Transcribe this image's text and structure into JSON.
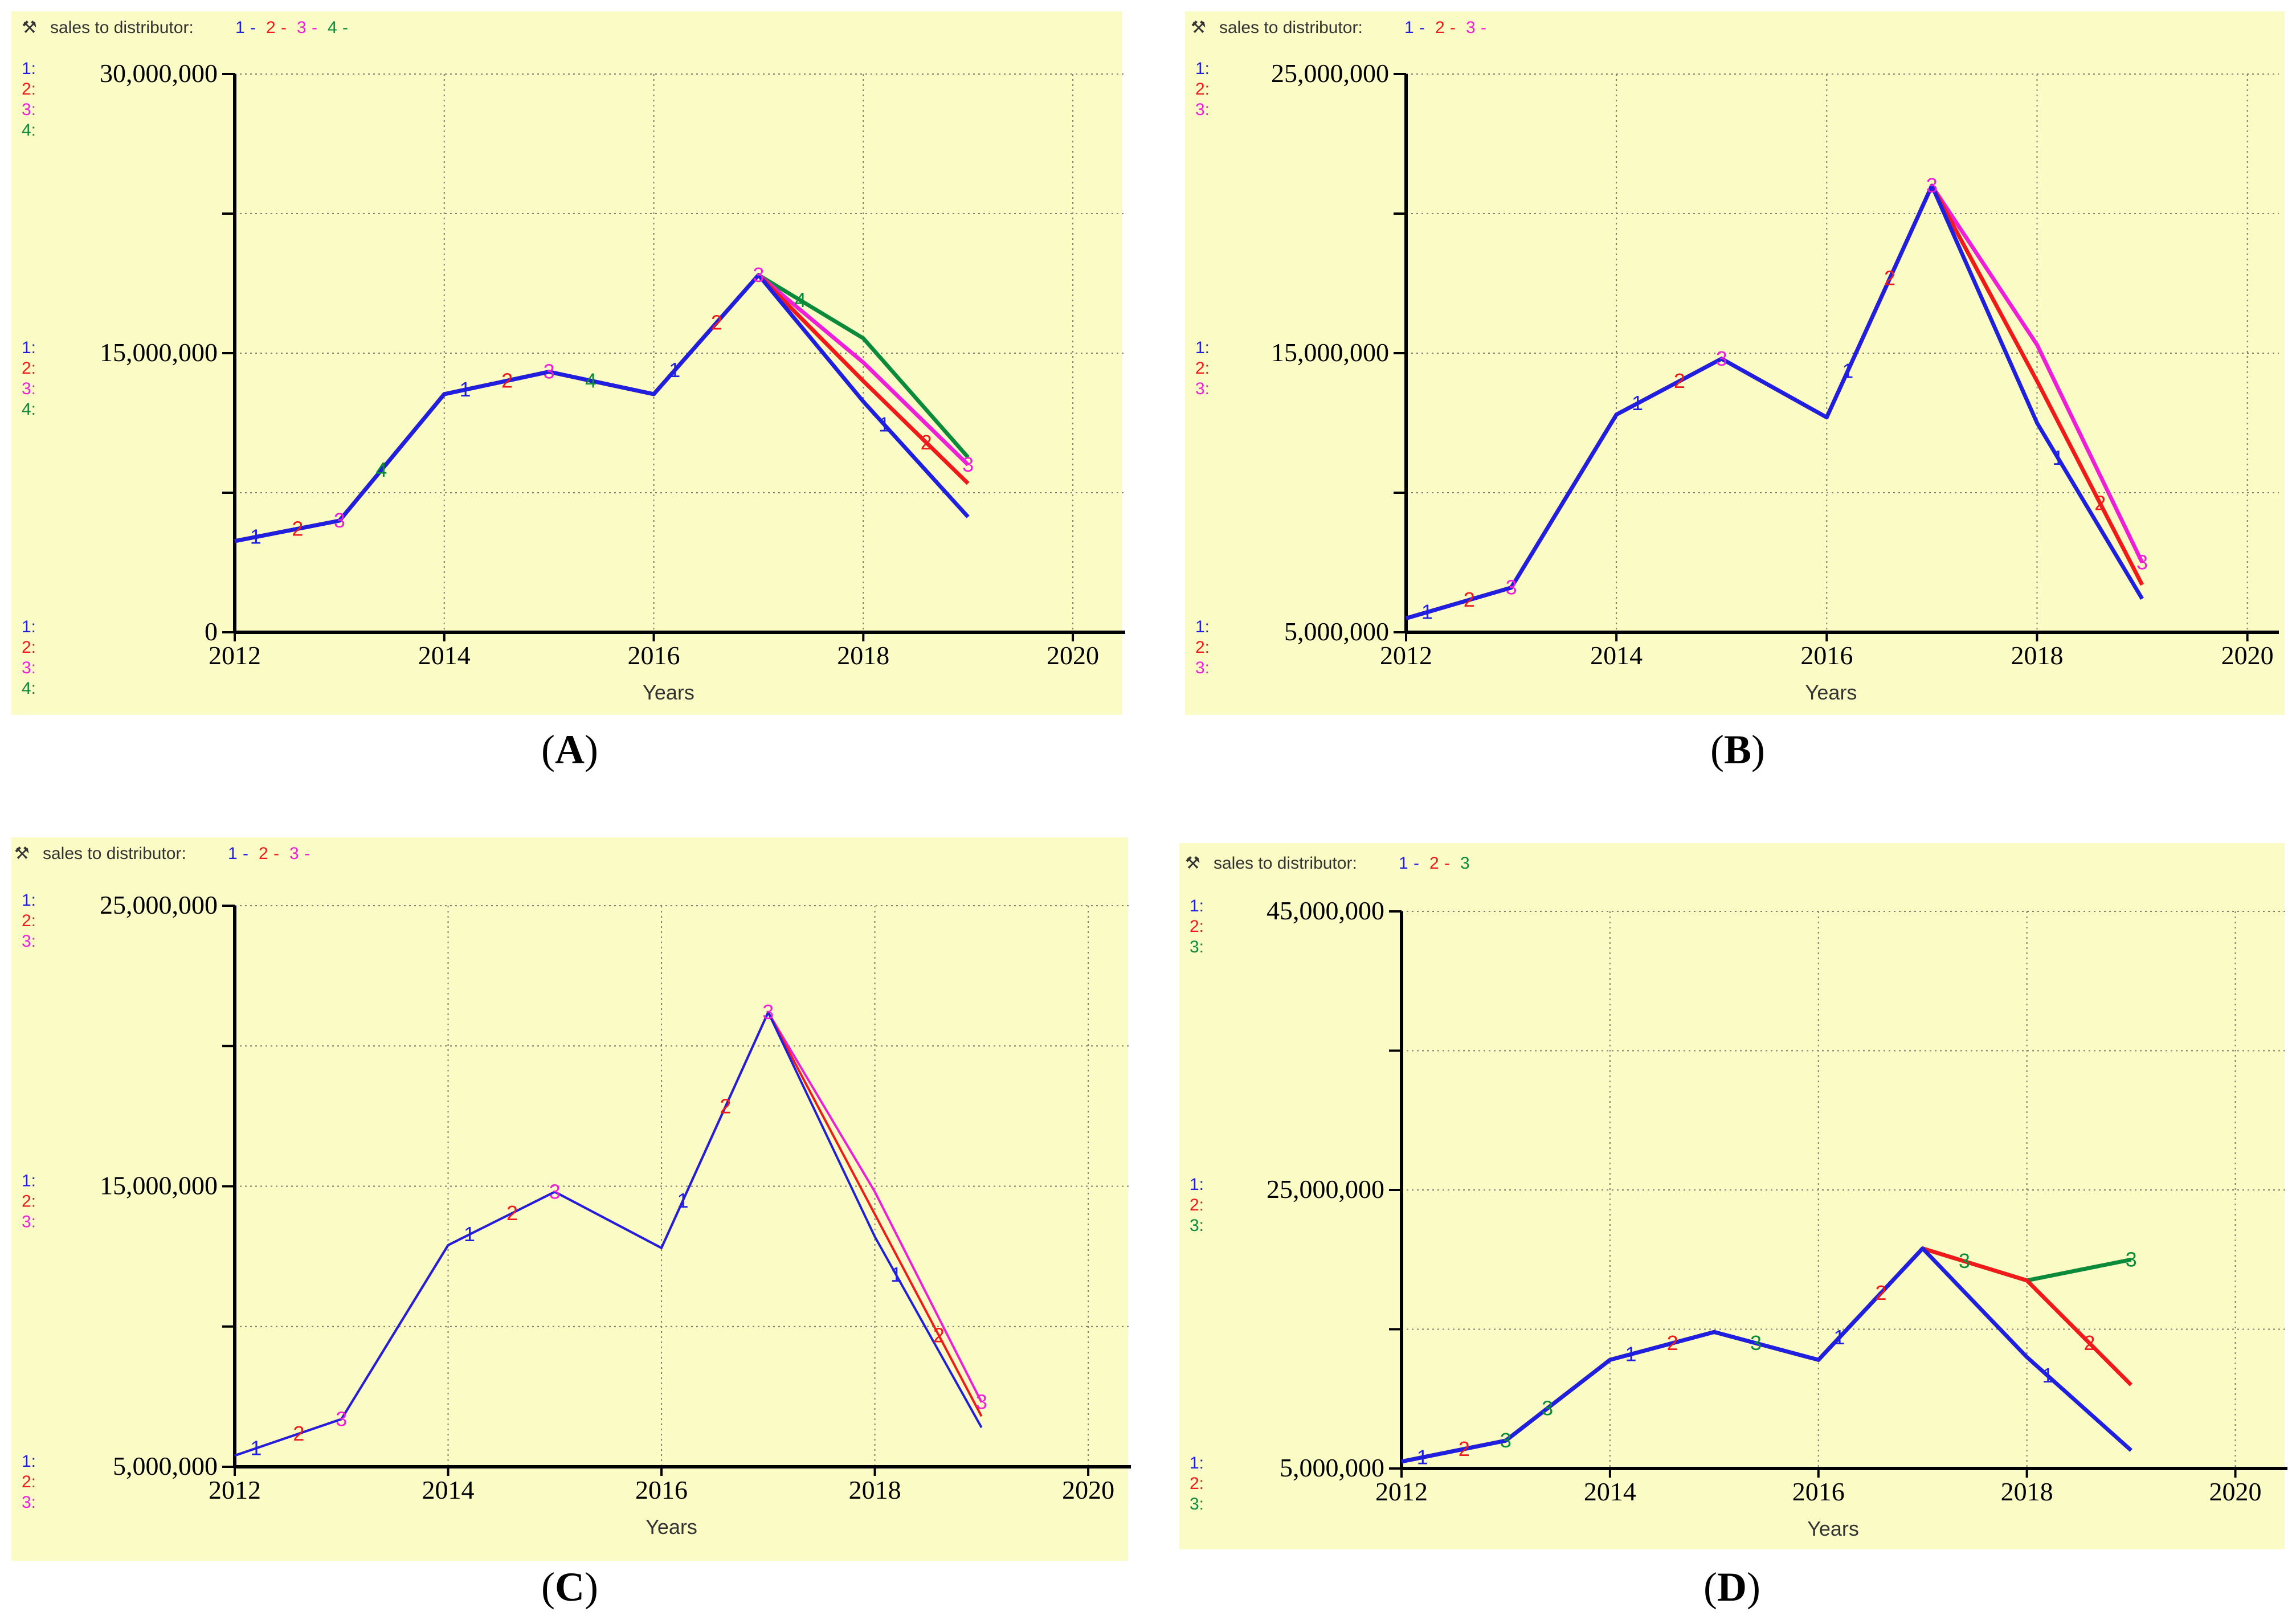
{
  "colors": {
    "panel_background": "#fbfbc5",
    "series_1": "#1f1fe0",
    "series_2": "#f01a1a",
    "series_3_magenta": "#ee1fd6",
    "series_3_green": "#0a8a3a",
    "series_4": "#0a8a3a"
  },
  "chart_data": [
    {
      "panel": "A",
      "caption": "(A)",
      "caption_letter": "A",
      "type": "line",
      "title": "sales to distributor:",
      "title_icon": "wrench-icon",
      "series_numbers": [
        "1",
        "2",
        "3",
        "4"
      ],
      "series_separator": "-",
      "xlabel": "Years",
      "xlim": [
        2012,
        2020.5
      ],
      "ylim": [
        0,
        30000000
      ],
      "x_ticks": [
        2012,
        2014,
        2016,
        2018,
        2020
      ],
      "x_tick_labels": [
        "2012",
        "2014",
        "2016",
        "2018",
        "2020"
      ],
      "y_ticks": [
        0,
        7500000,
        15000000,
        22500000,
        30000000
      ],
      "y_tick_labels": [
        "0",
        "",
        "15,000,000",
        "",
        "30,000,000"
      ],
      "grid": true,
      "series": [
        {
          "name": "1",
          "color": "#1f1fe0",
          "x": [
            2012,
            2013,
            2014,
            2015,
            2016,
            2017,
            2018,
            2019
          ],
          "values": [
            4900000,
            6000000,
            12800000,
            14000000,
            12800000,
            19200000,
            12400000,
            6200000
          ]
        },
        {
          "name": "2",
          "color": "#f01a1a",
          "x": [
            2012,
            2013,
            2014,
            2015,
            2016,
            2017,
            2018,
            2019
          ],
          "values": [
            4900000,
            6000000,
            12800000,
            14000000,
            12800000,
            19200000,
            13500000,
            8000000
          ]
        },
        {
          "name": "3",
          "color": "#ee1fd6",
          "x": [
            2012,
            2013,
            2014,
            2015,
            2016,
            2017,
            2018,
            2019
          ],
          "values": [
            4900000,
            6000000,
            12800000,
            14000000,
            12800000,
            19200000,
            14500000,
            9000000
          ]
        },
        {
          "name": "4",
          "color": "#0a8a3a",
          "x": [
            2012,
            2013,
            2014,
            2015,
            2016,
            2017,
            2018,
            2019
          ],
          "values": [
            4900000,
            6000000,
            12800000,
            14000000,
            12800000,
            19200000,
            15800000,
            9400000
          ]
        }
      ]
    },
    {
      "panel": "B",
      "caption": "(B)",
      "caption_letter": "B",
      "type": "line",
      "title": "sales to distributor:",
      "title_icon": "wrench-icon",
      "series_numbers": [
        "1",
        "2",
        "3"
      ],
      "series_separator": "-",
      "xlabel": "Years",
      "xlim": [
        2012,
        2020.3
      ],
      "ylim": [
        5000000,
        25000000
      ],
      "x_ticks": [
        2012,
        2014,
        2016,
        2018,
        2020
      ],
      "x_tick_labels": [
        "2012",
        "2014",
        "2016",
        "2018",
        "2020"
      ],
      "y_ticks": [
        5000000,
        10000000,
        15000000,
        20000000,
        25000000
      ],
      "y_tick_labels": [
        "5,000,000",
        "",
        "15,000,000",
        "",
        "25,000,000"
      ],
      "grid": true,
      "series": [
        {
          "name": "1",
          "color": "#1f1fe0",
          "x": [
            2012,
            2013,
            2014,
            2015,
            2016,
            2017,
            2018,
            2019
          ],
          "values": [
            5500000,
            6600000,
            12800000,
            14800000,
            12700000,
            21000000,
            12500000,
            6200000
          ]
        },
        {
          "name": "2",
          "color": "#f01a1a",
          "x": [
            2012,
            2013,
            2014,
            2015,
            2016,
            2017,
            2018,
            2019
          ],
          "values": [
            5500000,
            6600000,
            12800000,
            14800000,
            12700000,
            21000000,
            14000000,
            6700000
          ]
        },
        {
          "name": "3",
          "color": "#ee1fd6",
          "x": [
            2012,
            2013,
            2014,
            2015,
            2016,
            2017,
            2018,
            2019
          ],
          "values": [
            5500000,
            6600000,
            12800000,
            14800000,
            12700000,
            21000000,
            15300000,
            7500000
          ]
        }
      ]
    },
    {
      "panel": "C",
      "caption": "(C)",
      "caption_letter": "C",
      "type": "line",
      "title": "sales to distributor:",
      "title_icon": "wrench-icon",
      "series_numbers": [
        "1",
        "2",
        "3"
      ],
      "series_separator": "-",
      "xlabel": "Years",
      "xlim": [
        2012,
        2020.4
      ],
      "ylim": [
        5000000,
        25000000
      ],
      "x_ticks": [
        2012,
        2014,
        2016,
        2018,
        2020
      ],
      "x_tick_labels": [
        "2012",
        "2014",
        "2016",
        "2018",
        "2020"
      ],
      "y_ticks": [
        5000000,
        10000000,
        15000000,
        20000000,
        25000000
      ],
      "y_tick_labels": [
        "5,000,000",
        "",
        "15,000,000",
        "",
        "25,000,000"
      ],
      "grid": true,
      "series": [
        {
          "name": "1",
          "color": "#1f1fe0",
          "x": [
            2012,
            2013,
            2014,
            2015,
            2016,
            2017,
            2018,
            2019
          ],
          "values": [
            5400000,
            6700000,
            12900000,
            14800000,
            12800000,
            21200000,
            13200000,
            6400000
          ]
        },
        {
          "name": "2",
          "color": "#f01a1a",
          "x": [
            2012,
            2013,
            2014,
            2015,
            2016,
            2017,
            2018,
            2019
          ],
          "values": [
            5400000,
            6700000,
            12900000,
            14800000,
            12800000,
            21200000,
            14000000,
            6800000
          ]
        },
        {
          "name": "3",
          "color": "#ee1fd6",
          "x": [
            2012,
            2013,
            2014,
            2015,
            2016,
            2017,
            2018,
            2019
          ],
          "values": [
            5400000,
            6700000,
            12900000,
            14800000,
            12800000,
            21200000,
            14800000,
            7300000
          ]
        }
      ]
    },
    {
      "panel": "D",
      "caption": "(D)",
      "caption_letter": "D",
      "type": "line",
      "title": "sales to distributor:",
      "title_icon": "wrench-icon",
      "series_numbers": [
        "1",
        "2",
        "3"
      ],
      "series_separator": "-",
      "xlabel": "Years",
      "xlim": [
        2012,
        2020.5
      ],
      "ylim": [
        5000000,
        45000000
      ],
      "x_ticks": [
        2012,
        2014,
        2016,
        2018,
        2020
      ],
      "x_tick_labels": [
        "2012",
        "2014",
        "2016",
        "2018",
        "2020"
      ],
      "y_ticks": [
        5000000,
        15000000,
        25000000,
        35000000,
        45000000
      ],
      "y_tick_labels": [
        "5,000,000",
        "",
        "25,000,000",
        "",
        "45,000,000"
      ],
      "grid": true,
      "series": [
        {
          "name": "1",
          "color": "#1f1fe0",
          "x": [
            2012,
            2013,
            2014,
            2015,
            2016,
            2017,
            2018,
            2019
          ],
          "values": [
            5500000,
            7000000,
            12800000,
            14800000,
            12800000,
            20800000,
            13000000,
            6300000
          ]
        },
        {
          "name": "2",
          "color": "#f01a1a",
          "x": [
            2012,
            2013,
            2014,
            2015,
            2016,
            2017,
            2018,
            2019
          ],
          "values": [
            5500000,
            7000000,
            12800000,
            14800000,
            12800000,
            20800000,
            18500000,
            11000000
          ]
        },
        {
          "name": "3",
          "color": "#0a8a3a",
          "x": [
            2012,
            2013,
            2014,
            2015,
            2016,
            2017,
            2018,
            2019
          ],
          "values": [
            5500000,
            7000000,
            12800000,
            14800000,
            12800000,
            20800000,
            18500000,
            20000000
          ]
        }
      ]
    }
  ]
}
